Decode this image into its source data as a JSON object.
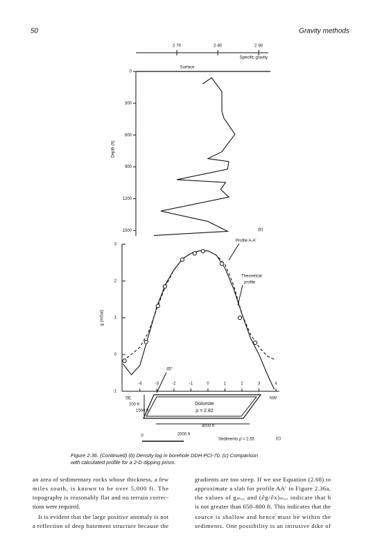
{
  "header": {
    "page": "50",
    "running_title": "Gravity methods"
  },
  "chart_data": [
    {
      "type": "line",
      "panel": "(b)",
      "x_label": "Specific gravity",
      "y_label": "Depth (ft)",
      "surface_label": "Surface",
      "x": [
        2.763,
        2.785,
        2.81,
        2.81,
        2.815,
        2.842,
        2.81,
        2.776,
        2.827,
        2.824,
        2.7,
        2.819,
        2.807,
        2.827,
        2.661,
        2.776,
        2.824,
        2.644
      ],
      "values": [
        118,
        59,
        191,
        375,
        441,
        592,
        757,
        822,
        849,
        921,
        1020,
        1046,
        1112,
        1184,
        1316,
        1414,
        1507,
        1546
      ],
      "color": "#111111",
      "xlim": [
        2.6,
        2.92
      ],
      "ylim": [
        0,
        1550
      ],
      "xticks": [
        {
          "value": 2.7,
          "label": "2·70"
        },
        {
          "value": 2.8,
          "label": "2·80"
        },
        {
          "value": 2.9,
          "label": "2·90"
        }
      ],
      "yticks": [
        0,
        300,
        600,
        900,
        1200,
        1500
      ]
    },
    {
      "type": "line",
      "panel": "(c)",
      "y_label": "g (mGal)",
      "annotations": [
        "Profile A-A′",
        "Theoretical",
        "profile",
        "SE",
        "NW",
        "45°",
        "Dolomite",
        "ρ = 2.82",
        "200 ft",
        "1500 ft",
        "4000 ft",
        "0",
        "2000 ft",
        "Sediments  ρ̄ = 2.55"
      ],
      "series": [
        {
          "style": "solid",
          "color": "#111111",
          "x": [
            -5.0,
            -4.5,
            -4.0,
            -3.5,
            -3.0,
            -2.5,
            -2.0,
            -1.5,
            -1.0,
            -0.5,
            0,
            0.5,
            1.0,
            1.5,
            2.0,
            2.5,
            3.0,
            3.5,
            3.9
          ],
          "values": [
            -0.25,
            -0.55,
            -0.3,
            0.5,
            1.3,
            1.9,
            2.3,
            2.6,
            2.75,
            2.82,
            2.82,
            2.7,
            2.35,
            1.8,
            1.1,
            0.45,
            0,
            -0.55,
            -0.95
          ]
        },
        {
          "style": "dashed",
          "color": "#111111",
          "x": [
            -5.0,
            -4.5,
            -4.0,
            -3.5,
            -3.0,
            -2.5,
            -2.0,
            -1.5,
            -1.0,
            -0.5,
            0,
            0.5,
            1.0,
            1.5,
            2.0,
            2.5,
            3.0,
            3.5,
            4.0
          ],
          "values": [
            -0.17,
            0.0,
            0.2,
            0.6,
            1.25,
            1.85,
            2.3,
            2.6,
            2.75,
            2.82,
            2.82,
            2.7,
            2.45,
            1.9,
            1.1,
            0.55,
            0.2,
            -0.05,
            -0.15
          ]
        },
        {
          "style": "points",
          "color": "#111111",
          "x": [
            -4.9,
            -3.63,
            -2.94,
            -2.53,
            -1.51,
            -0.78,
            -0.29,
            0.82,
            1.88,
            2.78
          ],
          "values": [
            -0.17,
            0.34,
            1.32,
            1.85,
            2.58,
            2.75,
            2.81,
            2.47,
            1.0,
            0.32
          ]
        }
      ],
      "xlim": [
        -5.05,
        4.2
      ],
      "ylim": [
        -1,
        3
      ],
      "xticks": [
        -4,
        -3,
        -2,
        -1,
        0,
        1,
        2,
        3,
        4
      ],
      "yticks": [
        -1,
        0,
        1,
        2,
        3
      ]
    }
  ],
  "caption": [
    "Figure 2.36. (Continued)  (b) Density log in borehole DDH PCI-70.  (c) Comparison",
    "with calculated profile for a 2-D dipping prism."
  ],
  "body": {
    "left": [
      "an area of sedimentary rocks whose thickness, a few",
      "miles south, is known to be over 5,000 ft. The",
      "topography is reasonably flat and no terrain correc-",
      "tions were required.",
      "It is evident that the large positive anomaly is not",
      "a reflection of deep basement structure because the"
    ],
    "right": [
      "gradients are too steep. If we use Equation (2.68) to",
      "approximate a slab for profile AA′ in Figure 2.36a,",
      "the values of gₘₐₓ and (∂g/∂x)ₘₐₓ indicate that h",
      "is not greater than 650–800 ft. This indicates that the",
      "source is shallow and hence must be within the",
      "sediments. One possibility is an intrusive dike of"
    ]
  }
}
